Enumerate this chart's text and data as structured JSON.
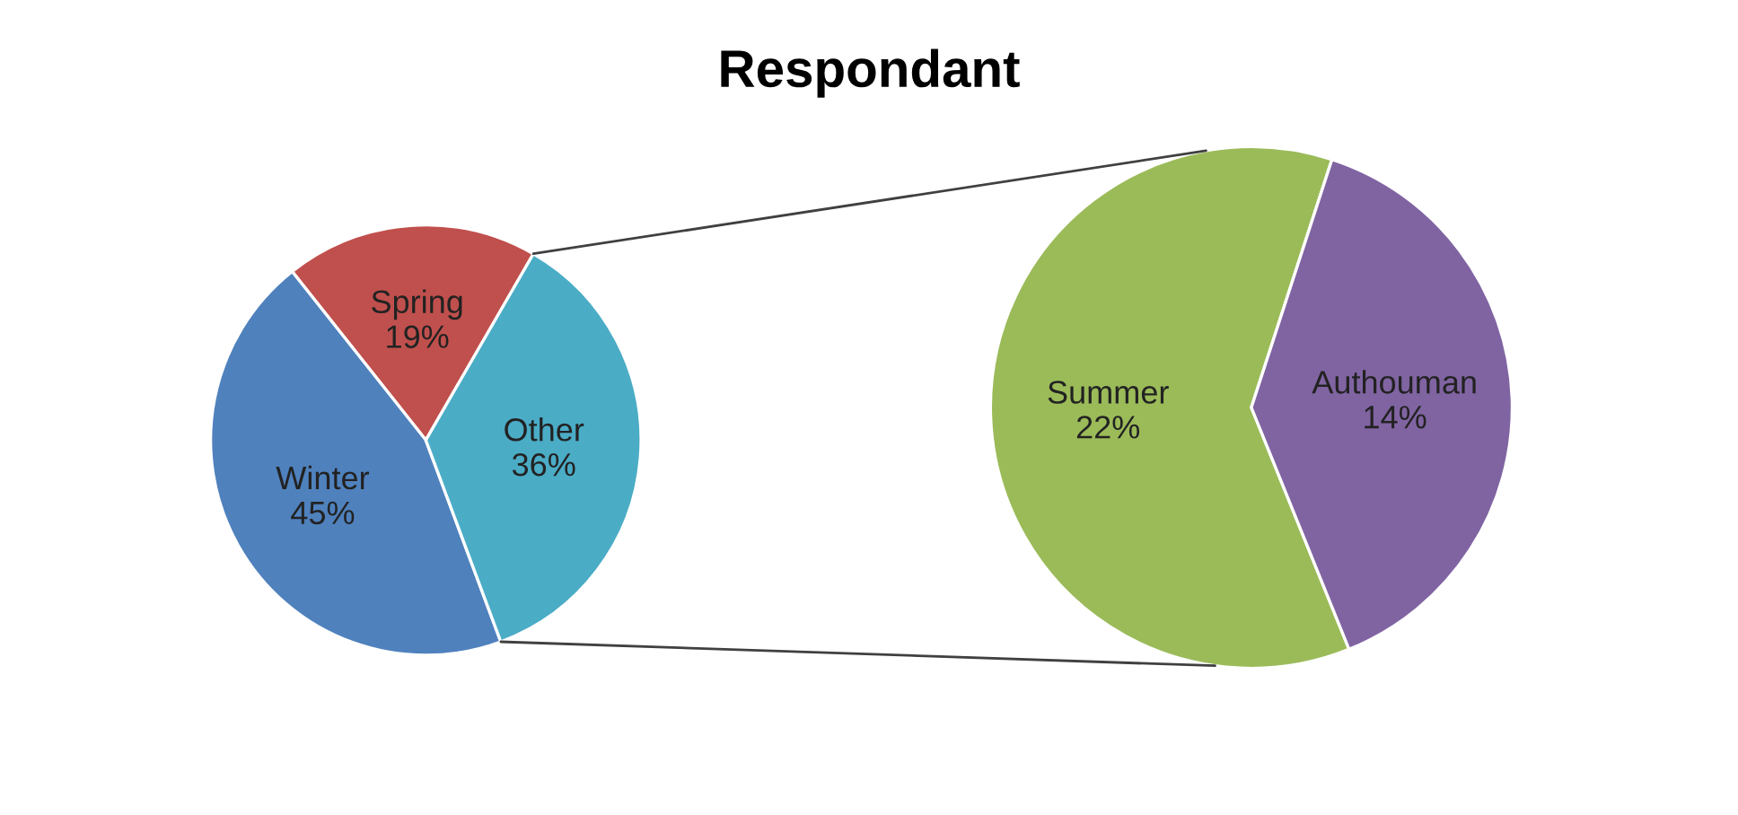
{
  "chart_data": [
    {
      "type": "pie",
      "title": "Respondant",
      "categories": [
        "Spring",
        "Winter",
        "Other"
      ],
      "values": [
        19,
        45,
        36
      ],
      "colors": [
        "#c0504d",
        "#4f81bd",
        "#4bacc6"
      ],
      "value_labels": [
        "19%",
        "45%",
        "36%"
      ]
    },
    {
      "type": "pie",
      "categories": [
        "Summer",
        "Authouman"
      ],
      "values": [
        22,
        14
      ],
      "colors": [
        "#9bbb59",
        "#8064a2"
      ],
      "value_labels": [
        "22%",
        "14%"
      ]
    }
  ]
}
